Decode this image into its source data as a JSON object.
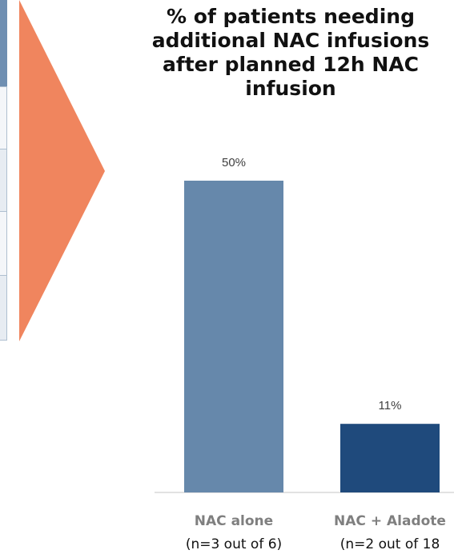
{
  "colors": {
    "arrow": "#f0855e",
    "bar_primary": "#6688ab",
    "bar_secondary": "#1f4a7c",
    "axis": "#d9d9d9"
  },
  "chart_data": {
    "type": "bar",
    "title": "% of patients needing additional NAC infusions after planned 12h NAC infusion",
    "categories": [
      "NAC alone",
      "NAC + Aladote"
    ],
    "category_sublabels": [
      "(n=3 out of 6)",
      "(n=2 out of 18"
    ],
    "values": [
      50,
      11
    ],
    "data_labels": [
      "50%",
      "11%"
    ],
    "bar_colors": [
      "#6688ab",
      "#1f4a7c"
    ],
    "xlabel": "",
    "ylabel": "",
    "ylim": [
      0,
      60
    ],
    "grid": false,
    "legend": "none"
  }
}
